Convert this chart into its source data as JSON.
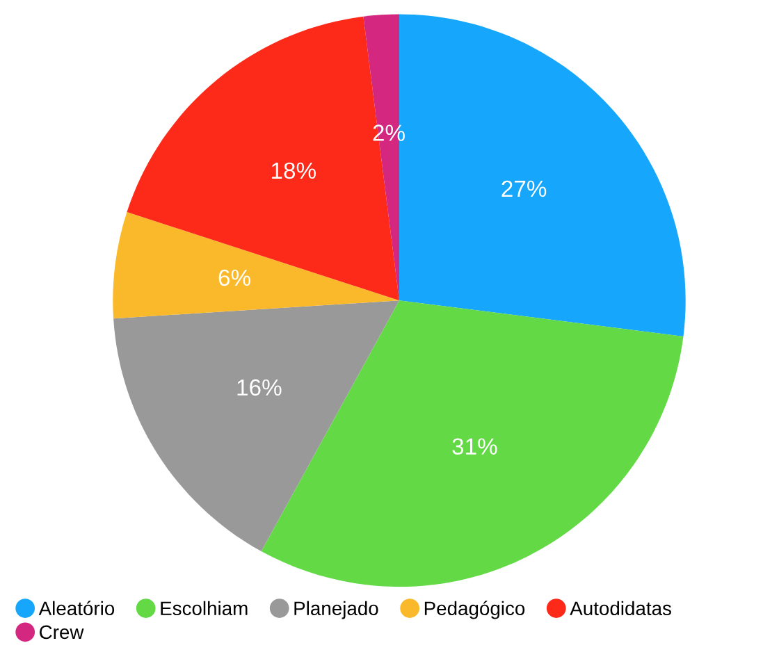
{
  "chart_data": {
    "type": "pie",
    "categories": [
      "Aleatório",
      "Escolhiam",
      "Planejado",
      "Pedagógico",
      "Autodidatas",
      "Crew"
    ],
    "values": [
      27,
      31,
      16,
      6,
      18,
      2
    ],
    "colors": [
      "#16a6fb",
      "#63d946",
      "#999999",
      "#f9b92b",
      "#fd2a1a",
      "#d4277f"
    ],
    "value_labels": [
      "27%",
      "31%",
      "16%",
      "6%",
      "18%",
      "2%"
    ],
    "legend": "bottom"
  }
}
